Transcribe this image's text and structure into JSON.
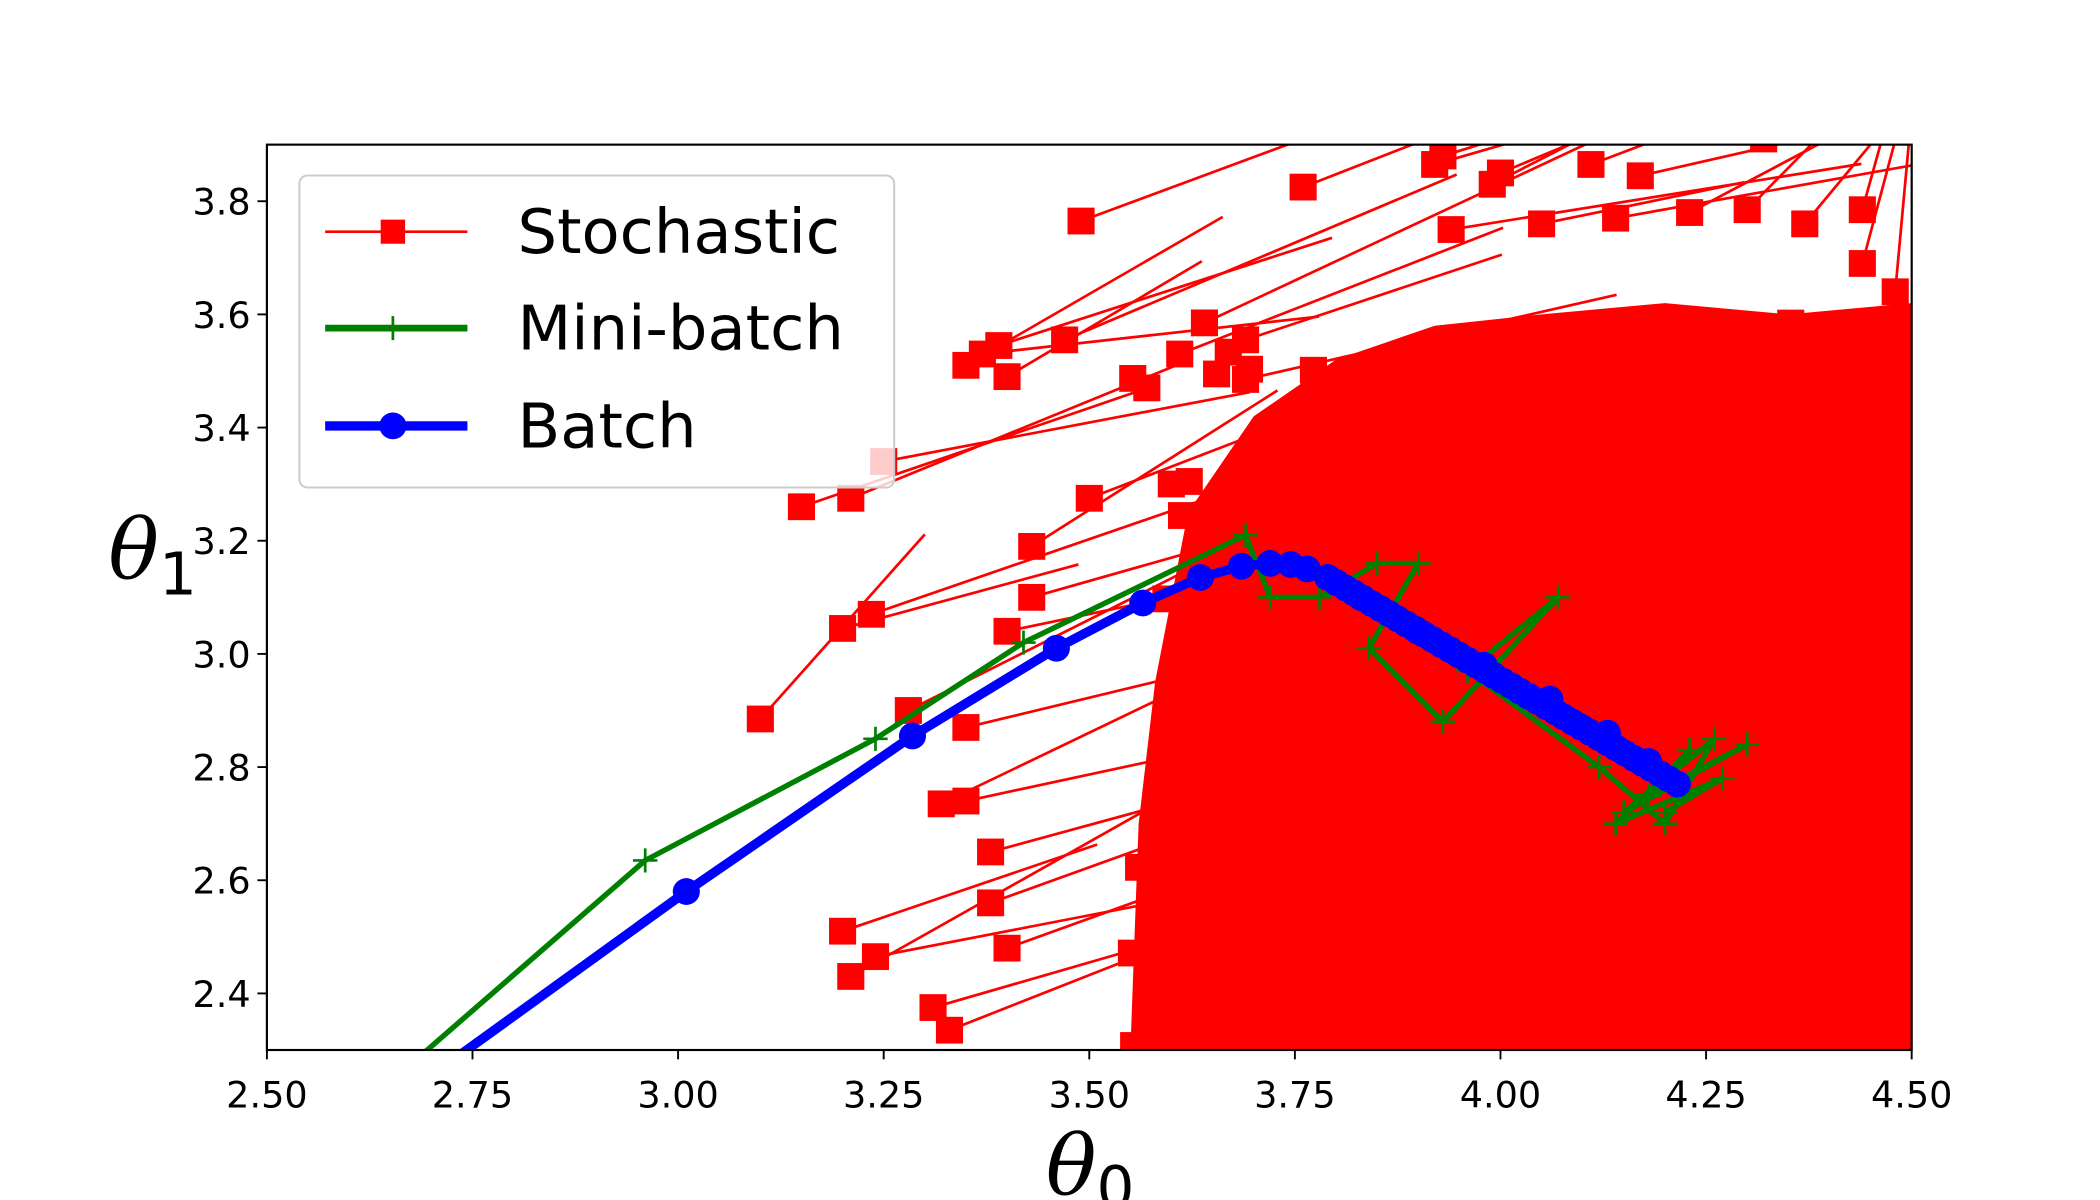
{
  "chart_data": {
    "type": "line",
    "xlabel": "θ",
    "xlabel_sub": "0",
    "ylabel": "θ",
    "ylabel_sub": "1",
    "xlim": [
      2.5,
      4.5
    ],
    "ylim": [
      2.3,
      3.9
    ],
    "xticks": [
      "2.50",
      "2.75",
      "3.00",
      "3.25",
      "3.50",
      "3.75",
      "4.00",
      "4.25",
      "4.50"
    ],
    "yticks": [
      "2.4",
      "2.6",
      "2.8",
      "3.0",
      "3.2",
      "3.4",
      "3.6",
      "3.8"
    ],
    "legend_position": "upper-left",
    "series": [
      {
        "name": "Stochastic",
        "color": "#ff0000",
        "marker": "square",
        "dense_region": [
          [
            3.55,
            2.3
          ],
          [
            3.56,
            2.7
          ],
          [
            3.58,
            2.95
          ],
          [
            3.62,
            3.25
          ],
          [
            3.7,
            3.42
          ],
          [
            3.8,
            3.52
          ],
          [
            3.92,
            3.58
          ],
          [
            4.05,
            3.6
          ],
          [
            4.2,
            3.62
          ],
          [
            4.35,
            3.6
          ],
          [
            4.5,
            3.62
          ],
          [
            4.5,
            2.3
          ]
        ],
        "points": [
          [
            3.1,
            2.885
          ],
          [
            3.2,
            3.045
          ],
          [
            3.235,
            3.07
          ],
          [
            3.43,
            3.19
          ],
          [
            3.15,
            3.26
          ],
          [
            3.21,
            3.275
          ],
          [
            3.25,
            3.34
          ],
          [
            3.35,
            3.51
          ],
          [
            3.37,
            3.53
          ],
          [
            3.39,
            3.545
          ],
          [
            3.47,
            3.555
          ],
          [
            3.4,
            3.49
          ],
          [
            3.49,
            3.765
          ],
          [
            3.61,
            3.53
          ],
          [
            3.64,
            3.585
          ],
          [
            3.69,
            3.555
          ],
          [
            3.69,
            3.485
          ],
          [
            3.76,
            3.825
          ],
          [
            3.92,
            3.865
          ],
          [
            3.93,
            3.88
          ],
          [
            3.99,
            3.83
          ],
          [
            4.0,
            3.85
          ],
          [
            4.11,
            3.865
          ],
          [
            4.17,
            3.845
          ],
          [
            4.32,
            3.91
          ],
          [
            3.2,
            2.51
          ],
          [
            3.21,
            2.43
          ],
          [
            3.24,
            2.465
          ],
          [
            3.31,
            2.375
          ],
          [
            3.33,
            2.335
          ],
          [
            3.32,
            2.735
          ],
          [
            3.35,
            2.74
          ],
          [
            3.38,
            2.65
          ],
          [
            3.38,
            2.56
          ],
          [
            3.4,
            2.48
          ],
          [
            3.28,
            2.9
          ],
          [
            3.35,
            2.87
          ],
          [
            3.4,
            3.04
          ],
          [
            3.43,
            3.1
          ],
          [
            3.5,
            3.275
          ],
          [
            4.44,
            3.785
          ],
          [
            4.3,
            3.785
          ],
          [
            4.23,
            3.78
          ],
          [
            4.05,
            3.76
          ],
          [
            3.94,
            3.75
          ],
          [
            4.14,
            3.77
          ],
          [
            4.37,
            3.76
          ],
          [
            4.44,
            3.69
          ],
          [
            4.48,
            3.64
          ]
        ]
      },
      {
        "name": "Mini-batch",
        "color": "#008000",
        "marker": "plus",
        "points": [
          [
            2.6,
            2.18
          ],
          [
            2.96,
            2.635
          ],
          [
            3.24,
            2.85
          ],
          [
            3.42,
            3.02
          ],
          [
            3.69,
            3.21
          ],
          [
            3.72,
            3.1
          ],
          [
            3.78,
            3.1
          ],
          [
            3.85,
            3.16
          ],
          [
            3.9,
            3.16
          ],
          [
            3.84,
            3.01
          ],
          [
            3.93,
            2.88
          ],
          [
            4.07,
            3.1
          ],
          [
            3.96,
            2.97
          ],
          [
            4.12,
            2.8
          ],
          [
            4.2,
            2.7
          ],
          [
            4.26,
            2.85
          ],
          [
            4.15,
            2.72
          ],
          [
            4.3,
            2.84
          ],
          [
            4.18,
            2.75
          ],
          [
            4.23,
            2.83
          ],
          [
            4.14,
            2.7
          ],
          [
            4.27,
            2.78
          ],
          [
            4.2,
            2.72
          ]
        ]
      },
      {
        "name": "Batch",
        "color": "#0000ff",
        "marker": "circle",
        "points": [
          [
            2.6,
            2.15
          ],
          [
            3.01,
            2.58
          ],
          [
            3.285,
            2.855
          ],
          [
            3.46,
            3.01
          ],
          [
            3.565,
            3.09
          ],
          [
            3.635,
            3.135
          ],
          [
            3.685,
            3.155
          ],
          [
            3.72,
            3.16
          ],
          [
            3.745,
            3.158
          ],
          [
            3.765,
            3.15
          ],
          [
            3.79,
            3.135
          ],
          [
            3.83,
            3.1
          ],
          [
            3.9,
            3.04
          ],
          [
            3.98,
            2.98
          ],
          [
            4.06,
            2.92
          ],
          [
            4.13,
            2.86
          ],
          [
            4.18,
            2.81
          ],
          [
            4.215,
            2.77
          ]
        ]
      }
    ]
  }
}
